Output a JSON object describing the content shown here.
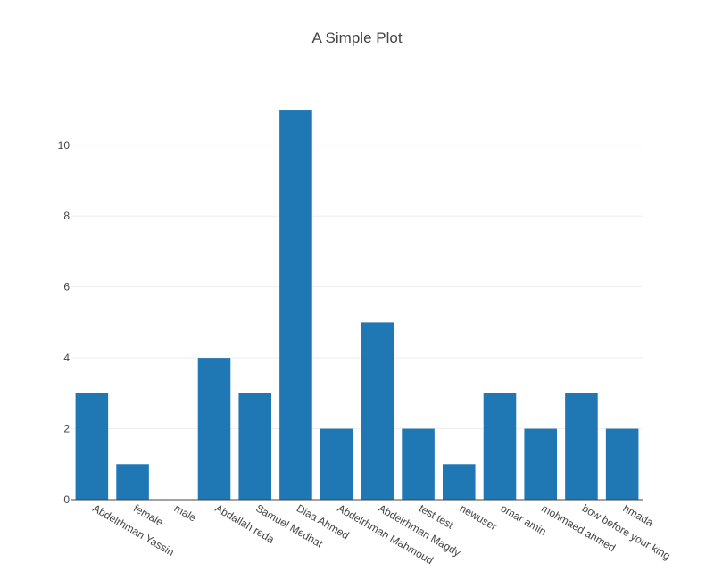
{
  "chart_data": {
    "type": "bar",
    "title": "A Simple Plot",
    "xlabel": "",
    "ylabel": "",
    "categories": [
      "Abdelrhman Yassin",
      "female",
      "male",
      "Abdallah reda",
      "Samuel Medhat",
      "Diaa Ahmed",
      "Abdelrhman Mahmoud",
      "Abdelrhman Magdy",
      "test test",
      "newuser",
      "omar amin",
      "mohmaed ahmed",
      "bow before your king",
      "hmada"
    ],
    "values": [
      3,
      1,
      0,
      4,
      3,
      11,
      2,
      5,
      2,
      1,
      3,
      2,
      3,
      2
    ],
    "yticks": [
      "0",
      "2",
      "4",
      "6",
      "8",
      "10"
    ],
    "ylim": [
      0,
      11.58
    ],
    "grid": true,
    "legend": "none",
    "bar_color": "#1f77b4",
    "gridline_color": "#eeeeee",
    "axis_line_color": "#444444"
  }
}
